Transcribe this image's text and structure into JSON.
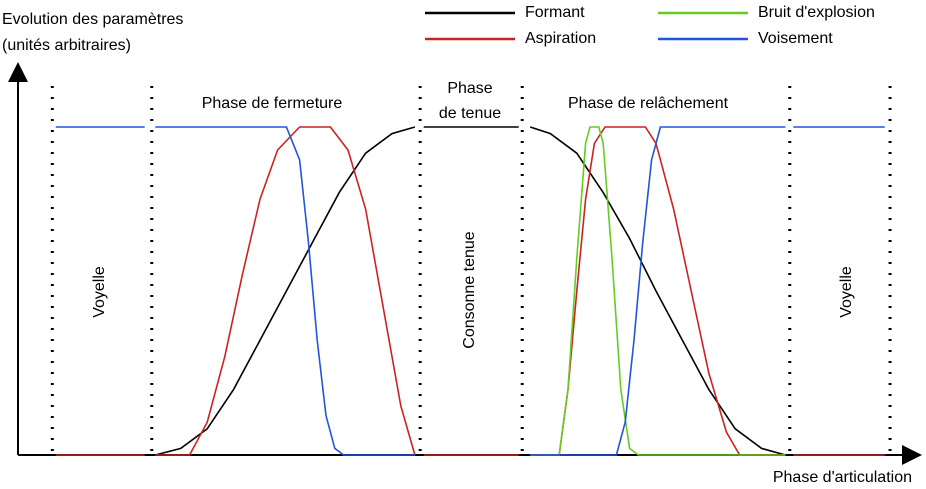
{
  "chart_data": {
    "type": "line",
    "y_label": [
      "Evolution des paramètres",
      "(unités arbitraires)"
    ],
    "x_label": "Phase d'articulation",
    "xlim": [
      0,
      100
    ],
    "ylim": [
      0,
      1
    ],
    "phase_boundaries": [
      1.4,
      12.7,
      43.2,
      54.8,
      85.2,
      96.6
    ],
    "annotations": [
      "Voyelle",
      "Phase de fermeture",
      "Phase",
      "de tenue",
      "Consonne tenue",
      "Phase de relâchement",
      "Voyelle"
    ],
    "series": [
      {
        "name": "Formant",
        "color": "#000000",
        "x": [
          13.1,
          16,
          19,
          22,
          25,
          28,
          31,
          34,
          37,
          40,
          42.6,
          null,
          43.6,
          54.4,
          null,
          55.7,
          58,
          61,
          64,
          67,
          70,
          73,
          76,
          79,
          82,
          84.7
        ],
        "values": [
          0,
          0.02,
          0.08,
          0.2,
          0.35,
          0.5,
          0.65,
          0.8,
          0.92,
          0.98,
          1,
          null,
          1,
          1,
          null,
          1,
          0.98,
          0.92,
          0.8,
          0.66,
          0.5,
          0.35,
          0.2,
          0.08,
          0.02,
          0
        ]
      },
      {
        "name": "Aspiration",
        "color": "#cc2222",
        "x": [
          1.8,
          11.9,
          null,
          13.1,
          17,
          19,
          21,
          23,
          25,
          27,
          29.5,
          33,
          35,
          37,
          39,
          41,
          42.6,
          null,
          43.6,
          54.4,
          null,
          55.7,
          59,
          60,
          61,
          62,
          63,
          64.2,
          68.8,
          70,
          72,
          74,
          76,
          78,
          79.5,
          84.7,
          null,
          85.6,
          96
        ],
        "values": [
          0,
          0,
          null,
          0,
          0,
          0.1,
          0.3,
          0.55,
          0.78,
          0.93,
          1,
          1,
          0.93,
          0.75,
          0.45,
          0.15,
          0,
          null,
          0,
          0,
          null,
          0,
          0,
          0.2,
          0.5,
          0.78,
          0.95,
          1,
          1,
          0.95,
          0.75,
          0.5,
          0.25,
          0.07,
          0,
          0,
          null,
          0,
          0
        ]
      },
      {
        "name": "Bruit d'explosion",
        "color": "#66cc22",
        "x": [
          55.7,
          59,
          60,
          61,
          62,
          62.5,
          63.5,
          64,
          65,
          66,
          67,
          68,
          84.7
        ],
        "values": [
          0,
          0,
          0.2,
          0.6,
          0.95,
          1,
          1,
          0.95,
          0.6,
          0.2,
          0.02,
          0,
          0
        ]
      },
      {
        "name": "Voisement",
        "color": "#2255dd",
        "x": [
          1.8,
          11.9,
          null,
          13.1,
          28,
          29.5,
          30.5,
          31.5,
          32.5,
          33.5,
          34.5,
          42.6,
          null,
          55.7,
          65.5,
          66.5,
          67.5,
          68.5,
          69.5,
          70.5,
          84.7,
          null,
          85.6,
          96
        ],
        "values": [
          1,
          1,
          null,
          1,
          1,
          0.9,
          0.65,
          0.35,
          0.12,
          0.02,
          0,
          0,
          null,
          0,
          0,
          0.1,
          0.35,
          0.65,
          0.9,
          1,
          1,
          null,
          1,
          1
        ]
      }
    ]
  }
}
